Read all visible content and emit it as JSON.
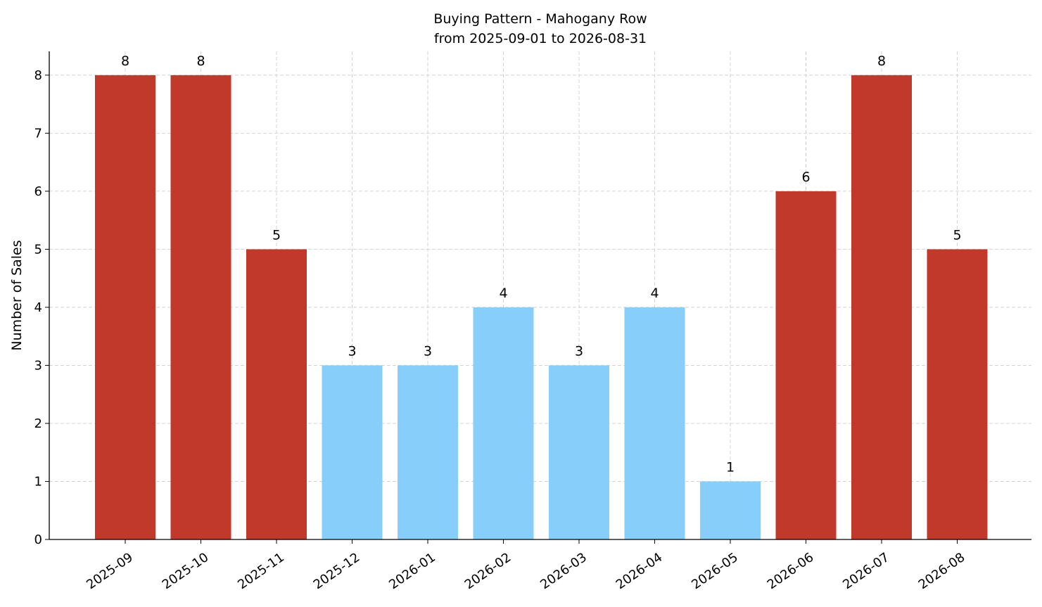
{
  "chart_data": {
    "type": "bar",
    "title": "Buying Pattern - Mahogany Row",
    "subtitle": "from 2025-09-01 to 2026-08-31",
    "y_label": "Number of Sales",
    "categories": [
      "2025-09",
      "2025-10",
      "2025-11",
      "2025-12",
      "2026-01",
      "2026-02",
      "2026-03",
      "2026-04",
      "2026-05",
      "2026-06",
      "2026-07",
      "2026-08"
    ],
    "values": [
      8,
      8,
      5,
      3,
      3,
      4,
      3,
      4,
      1,
      6,
      8,
      5
    ],
    "colors": [
      "#c0392b",
      "#c0392b",
      "#c0392b",
      "#87cefa",
      "#87cefa",
      "#87cefa",
      "#87cefa",
      "#87cefa",
      "#87cefa",
      "#c0392b",
      "#c0392b",
      "#c0392b"
    ],
    "ylim": [
      0,
      8.41
    ],
    "yticks": [
      0,
      1,
      2,
      3,
      4,
      5,
      6,
      7,
      8
    ],
    "grid": true
  }
}
